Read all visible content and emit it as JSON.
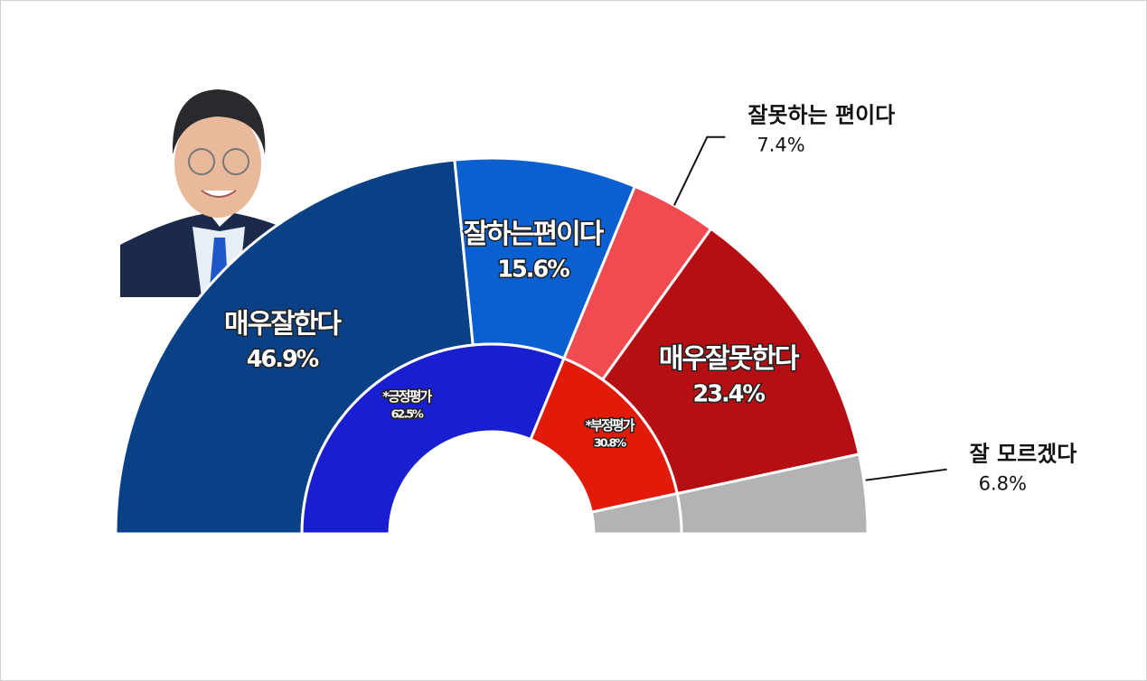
{
  "chart_data": {
    "type": "half-donut",
    "outer": {
      "categories": [
        "매우잘한다",
        "잘하는편이다",
        "잘못하는 편이다",
        "매우잘못한다",
        "잘 모르겠다"
      ],
      "values": [
        46.9,
        15.6,
        7.4,
        23.4,
        6.8
      ],
      "value_labels": [
        "46.9%",
        "15.6%",
        "7.4%",
        "23.4%",
        "6.8%"
      ],
      "colors": [
        "#0a4086",
        "#0a5fd1",
        "#ef4b50",
        "#b50f14",
        "#b3b3b3"
      ]
    },
    "inner": {
      "categories": [
        "*긍정평가",
        "*부정평가",
        null
      ],
      "values": [
        62.5,
        30.8,
        6.8
      ],
      "value_labels": [
        "62.5%",
        "30.8%",
        null
      ],
      "colors": [
        "#1a1ed1",
        "#e11a0a",
        "#b3b3b3"
      ]
    }
  }
}
